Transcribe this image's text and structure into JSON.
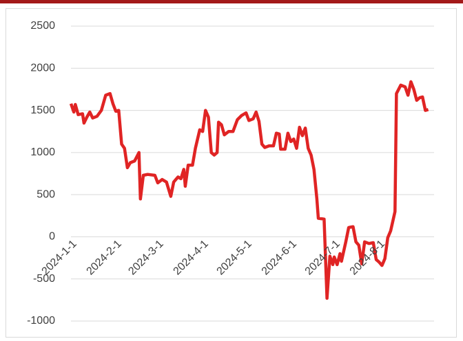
{
  "chart_data": {
    "type": "line",
    "x": [
      "2024-1-1",
      "2024-1-3",
      "2024-1-4",
      "2024-1-6",
      "2024-1-9",
      "2024-1-10",
      "2024-1-12",
      "2024-1-14",
      "2024-1-16",
      "2024-1-19",
      "2024-1-22",
      "2024-1-25",
      "2024-1-28",
      "2024-1-30",
      "2024-2-1",
      "2024-2-3",
      "2024-2-5",
      "2024-2-7",
      "2024-2-9",
      "2024-2-11",
      "2024-2-14",
      "2024-2-17",
      "2024-2-18",
      "2024-2-20",
      "2024-2-23",
      "2024-2-28",
      "2024-3-1",
      "2024-3-4",
      "2024-3-7",
      "2024-3-10",
      "2024-3-12",
      "2024-3-15",
      "2024-3-17",
      "2024-3-19",
      "2024-3-20",
      "2024-3-22",
      "2024-3-25",
      "2024-3-27",
      "2024-3-30",
      "2024-4-1",
      "2024-4-3",
      "2024-4-5",
      "2024-4-7",
      "2024-4-9",
      "2024-4-11",
      "2024-4-12",
      "2024-4-14",
      "2024-4-16",
      "2024-4-19",
      "2024-4-22",
      "2024-4-25",
      "2024-4-28",
      "2024-5-1",
      "2024-5-3",
      "2024-5-6",
      "2024-5-8",
      "2024-5-10",
      "2024-5-12",
      "2024-5-14",
      "2024-5-17",
      "2024-5-20",
      "2024-5-22",
      "2024-5-24",
      "2024-5-25",
      "2024-5-28",
      "2024-5-30",
      "2024-6-1",
      "2024-6-3",
      "2024-6-5",
      "2024-6-7",
      "2024-6-9",
      "2024-6-11",
      "2024-6-13",
      "2024-6-15",
      "2024-6-17",
      "2024-6-19",
      "2024-6-20",
      "2024-6-24",
      "2024-6-26",
      "2024-6-28",
      "2024-6-30",
      "2024-7-1",
      "2024-7-3",
      "2024-7-5",
      "2024-7-6",
      "2024-7-9",
      "2024-7-11",
      "2024-7-14",
      "2024-7-16",
      "2024-7-18",
      "2024-7-20",
      "2024-7-22",
      "2024-7-25",
      "2024-7-28",
      "2024-7-30",
      "2024-8-1",
      "2024-8-3",
      "2024-8-5",
      "2024-8-7",
      "2024-8-9",
      "2024-8-12",
      "2024-8-13",
      "2024-8-16",
      "2024-8-19",
      "2024-8-21",
      "2024-8-23",
      "2024-8-25",
      "2024-8-27",
      "2024-8-29",
      "2024-8-31",
      "2024-9-2",
      "2024-9-4"
    ],
    "values": [
      1580,
      1480,
      1570,
      1450,
      1460,
      1350,
      1420,
      1480,
      1410,
      1430,
      1500,
      1680,
      1700,
      1580,
      1490,
      1500,
      1100,
      1050,
      820,
      880,
      900,
      1000,
      450,
      730,
      740,
      730,
      640,
      680,
      650,
      480,
      650,
      710,
      690,
      800,
      600,
      850,
      850,
      1050,
      1270,
      1250,
      1500,
      1420,
      1000,
      970,
      1000,
      1360,
      1330,
      1210,
      1250,
      1250,
      1390,
      1440,
      1470,
      1380,
      1400,
      1480,
      1370,
      1100,
      1060,
      1080,
      1080,
      1230,
      1220,
      1040,
      1040,
      1230,
      1130,
      1160,
      1050,
      1300,
      1200,
      1290,
      1050,
      970,
      800,
      450,
      220,
      210,
      -730,
      -230,
      -330,
      -240,
      -330,
      -200,
      -290,
      -60,
      110,
      120,
      -60,
      -100,
      -320,
      -60,
      -80,
      -70,
      -270,
      -300,
      -340,
      -260,
      -10,
      70,
      300,
      1700,
      1800,
      1780,
      1680,
      1840,
      1750,
      1620,
      1650,
      1660,
      1500,
      1510
    ],
    "color": "#e02424",
    "xlim": [
      "2024-1-1",
      "2024-9-8"
    ],
    "xticks": [
      "2024-1-1",
      "2024-2-1",
      "2024-3-1",
      "2024-4-1",
      "2024-5-1",
      "2024-6-1",
      "2024-7-1",
      "2024-8-1"
    ],
    "ylim": [
      -1000,
      2500
    ],
    "yticks": [
      -1000,
      -500,
      0,
      500,
      1000,
      1500,
      2000,
      2500
    ],
    "grid": true
  }
}
